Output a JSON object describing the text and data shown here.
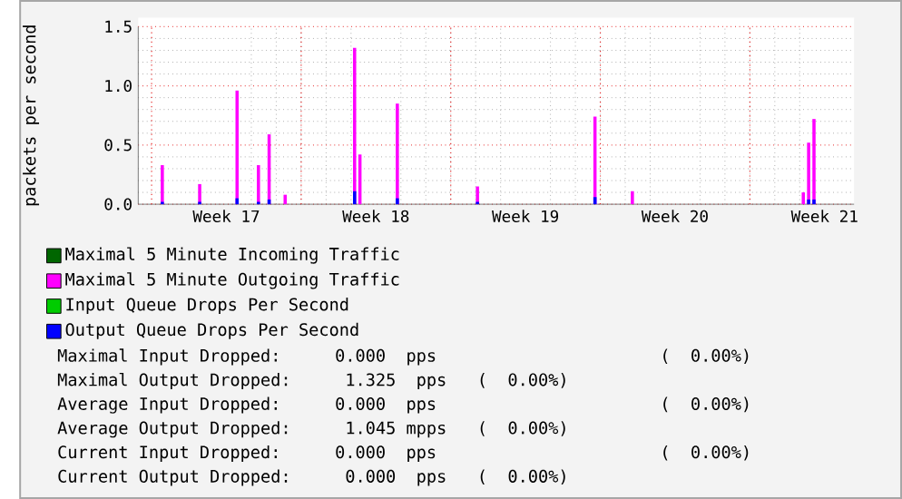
{
  "chart_data": {
    "type": "bar",
    "ylabel": "packets per second",
    "categories": [
      null,
      null,
      null,
      null,
      null,
      null,
      null,
      null,
      null,
      null,
      null,
      null,
      null,
      null,
      null,
      null,
      "Week 17",
      null,
      null,
      null,
      null,
      null,
      null,
      null,
      null,
      null,
      null,
      null,
      null,
      null,
      null,
      null,
      null,
      null,
      null,
      null,
      null,
      null,
      null,
      null,
      null,
      null,
      null,
      null,
      "Week 18",
      null,
      null,
      null,
      null,
      null,
      null,
      null,
      null,
      null,
      null,
      null,
      null,
      null,
      null,
      null,
      null,
      null,
      null,
      null,
      null,
      null,
      null,
      null,
      null,
      null,
      null,
      null,
      "Week 19",
      null,
      null,
      null,
      null,
      null,
      null,
      null,
      null,
      null,
      null,
      null,
      null,
      null,
      null,
      null,
      null,
      null,
      null,
      null,
      null,
      null,
      null,
      null,
      null,
      null,
      null,
      null,
      "Week 20",
      null,
      null,
      null,
      null,
      null,
      null,
      null,
      null,
      null,
      null,
      null,
      null,
      null,
      null,
      null,
      null,
      null,
      null,
      null,
      null,
      null,
      null,
      null,
      null,
      null,
      null,
      null,
      "Week 21",
      null,
      null,
      null,
      null,
      null
    ],
    "series": [
      {
        "name": "Maximal 5 Minute Incoming Traffic",
        "color": "#006600",
        "values": [
          null,
          null,
          null,
          null,
          0,
          null,
          null,
          null,
          null,
          null,
          null,
          0,
          null,
          null,
          null,
          null,
          null,
          null,
          0,
          null,
          null,
          null,
          0,
          null,
          0,
          null,
          null,
          0,
          null,
          null,
          null,
          null,
          null,
          null,
          null,
          null,
          null,
          null,
          null,
          null,
          0,
          0,
          null,
          null,
          null,
          null,
          null,
          null,
          0,
          null,
          null,
          null,
          null,
          null,
          null,
          null,
          null,
          null,
          null,
          null,
          null,
          null,
          null,
          0,
          null,
          null,
          null,
          null,
          null,
          null,
          null,
          null,
          null,
          null,
          null,
          null,
          null,
          null,
          null,
          null,
          null,
          null,
          null,
          null,
          null,
          0,
          null,
          null,
          null,
          null,
          null,
          null,
          0,
          null,
          null,
          null,
          null,
          null,
          null,
          null,
          null,
          null,
          null,
          null,
          null,
          null,
          null,
          null,
          null,
          null,
          null,
          null,
          null,
          null,
          null,
          null,
          null,
          null,
          null,
          null,
          null,
          null,
          null,
          null,
          0,
          0,
          0,
          null,
          null,
          null,
          null,
          null,
          null,
          null
        ]
      },
      {
        "name": "Maximal 5 Minute Outgoing Traffic",
        "color": "#ff00ff",
        "values": [
          null,
          null,
          null,
          null,
          0.33,
          null,
          null,
          null,
          null,
          null,
          null,
          0.17,
          null,
          null,
          null,
          null,
          null,
          null,
          0.96,
          null,
          null,
          null,
          0.33,
          null,
          0.59,
          null,
          null,
          0.08,
          null,
          null,
          null,
          null,
          null,
          null,
          null,
          null,
          null,
          null,
          null,
          null,
          1.32,
          0.42,
          null,
          null,
          null,
          null,
          null,
          null,
          0.85,
          null,
          null,
          null,
          null,
          null,
          null,
          null,
          null,
          null,
          null,
          null,
          null,
          null,
          null,
          0.15,
          null,
          null,
          null,
          null,
          null,
          null,
          null,
          null,
          null,
          null,
          null,
          null,
          null,
          null,
          null,
          null,
          null,
          null,
          null,
          null,
          null,
          0.74,
          null,
          null,
          null,
          null,
          null,
          null,
          0.11,
          null,
          null,
          null,
          null,
          null,
          null,
          null,
          null,
          null,
          null,
          null,
          null,
          null,
          null,
          null,
          null,
          null,
          null,
          null,
          null,
          null,
          null,
          null,
          null,
          null,
          null,
          null,
          null,
          null,
          null,
          null,
          0.1,
          0.52,
          0.72,
          null,
          null,
          null,
          null,
          null,
          null,
          null
        ]
      },
      {
        "name": "Input Queue Drops Per Second",
        "color": "#00cc00",
        "values": [
          null,
          null,
          null,
          null,
          0,
          null,
          null,
          null,
          null,
          null,
          null,
          0,
          null,
          null,
          null,
          null,
          null,
          null,
          0,
          null,
          null,
          null,
          0,
          null,
          0,
          null,
          null,
          0,
          null,
          null,
          null,
          null,
          null,
          null,
          null,
          null,
          null,
          null,
          null,
          null,
          0,
          0,
          null,
          null,
          null,
          null,
          null,
          null,
          0,
          null,
          null,
          null,
          null,
          null,
          null,
          null,
          null,
          null,
          null,
          null,
          null,
          null,
          null,
          0,
          null,
          null,
          null,
          null,
          null,
          null,
          null,
          null,
          null,
          null,
          null,
          null,
          null,
          null,
          null,
          null,
          null,
          null,
          null,
          null,
          null,
          0,
          null,
          null,
          null,
          null,
          null,
          null,
          0,
          null,
          null,
          null,
          null,
          null,
          null,
          null,
          null,
          null,
          null,
          null,
          null,
          null,
          null,
          null,
          null,
          null,
          null,
          null,
          null,
          null,
          null,
          null,
          null,
          null,
          null,
          null,
          null,
          null,
          null,
          null,
          0,
          0,
          0,
          null,
          null,
          null,
          null,
          null,
          null,
          null
        ]
      },
      {
        "name": "Output Queue Drops Per Second",
        "color": "#0000ff",
        "values": [
          null,
          null,
          null,
          null,
          0.02,
          null,
          null,
          null,
          null,
          null,
          null,
          0.02,
          null,
          null,
          null,
          null,
          null,
          null,
          0.05,
          null,
          null,
          null,
          0.02,
          null,
          0.04,
          null,
          null,
          null,
          null,
          null,
          null,
          null,
          null,
          null,
          null,
          null,
          null,
          null,
          null,
          null,
          0.11,
          null,
          null,
          null,
          null,
          null,
          null,
          null,
          0.05,
          null,
          null,
          null,
          null,
          null,
          null,
          null,
          null,
          null,
          null,
          null,
          null,
          null,
          null,
          0.02,
          null,
          null,
          null,
          null,
          null,
          null,
          null,
          null,
          null,
          null,
          null,
          null,
          null,
          null,
          null,
          null,
          null,
          null,
          null,
          null,
          null,
          0.06,
          null,
          null,
          null,
          null,
          null,
          null,
          null,
          null,
          null,
          null,
          null,
          null,
          null,
          null,
          null,
          null,
          null,
          null,
          null,
          null,
          null,
          null,
          null,
          null,
          null,
          null,
          null,
          null,
          null,
          null,
          null,
          null,
          null,
          null,
          null,
          null,
          null,
          null,
          null,
          0.04,
          0.04,
          null,
          null,
          null,
          null,
          null,
          null,
          null
        ]
      }
    ],
    "ylim": [
      0,
      1.5
    ],
    "yticks": [
      {
        "value": 0,
        "label": "0.0"
      },
      {
        "value": 0.5,
        "label": "0.5"
      },
      {
        "value": 1,
        "label": "1.0"
      },
      {
        "value": 1.5,
        "label": "1.5"
      }
    ],
    "grid": true,
    "legend": "bottom",
    "annotations": [
      "Maximal Input Dropped:    0.000  pps                      (  0.00%)",
      "Maximal Output Dropped:    1.325  pps   (  0.00%)",
      "Average Input Dropped:    0.000  pps                      (  0.00%)",
      "Average Output Dropped:    1.045 mpps   (  0.00%)",
      "Current Input Dropped:    0.000  pps                      (  0.00%)",
      "Current Output Dropped:    0.000  pps   (  0.00%)"
    ]
  }
}
